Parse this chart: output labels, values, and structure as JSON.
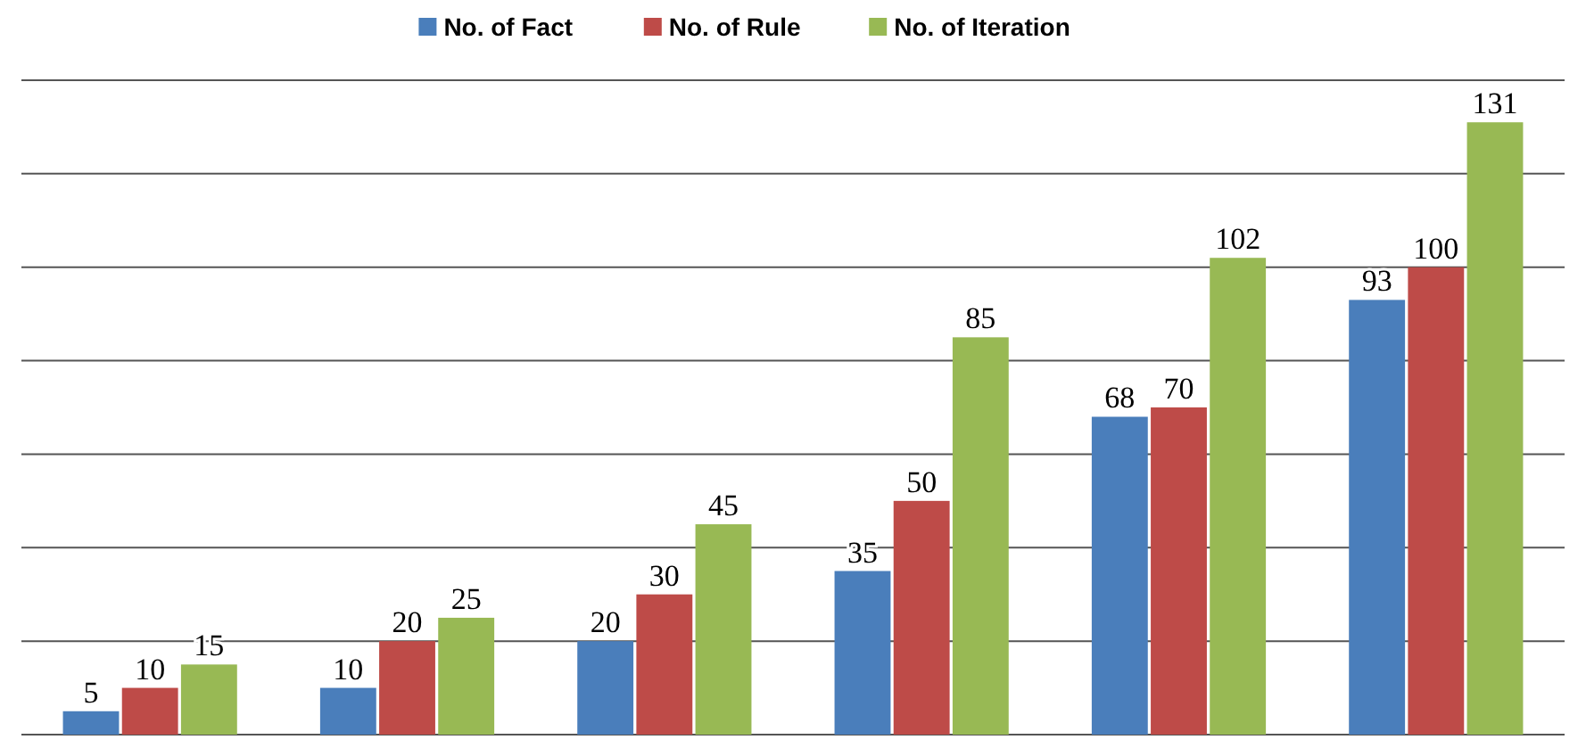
{
  "chart_data": {
    "type": "bar",
    "categories": [
      null,
      null,
      null,
      null,
      null,
      null
    ],
    "series": [
      {
        "name": "No. of Fact",
        "color": "#4a7ebb",
        "values": [
          5,
          10,
          20,
          35,
          68,
          93
        ]
      },
      {
        "name": "No. of Rule",
        "color": "#be4b48",
        "values": [
          10,
          20,
          30,
          50,
          70,
          100
        ]
      },
      {
        "name": "No. of Iteration",
        "color": "#98b954",
        "values": [
          15,
          25,
          45,
          85,
          102,
          131
        ]
      }
    ],
    "ylim": [
      0,
      140
    ],
    "yticks": [
      {
        "value": 0,
        "label": null
      },
      {
        "value": 20,
        "label": null
      },
      {
        "value": 40,
        "label": null
      },
      {
        "value": 60,
        "label": null
      },
      {
        "value": 80,
        "label": null
      },
      {
        "value": 100,
        "label": null
      },
      {
        "value": 120,
        "label": null
      },
      {
        "value": 140,
        "label": null
      }
    ],
    "grid": "y",
    "data_labels": true,
    "legend": "top"
  }
}
